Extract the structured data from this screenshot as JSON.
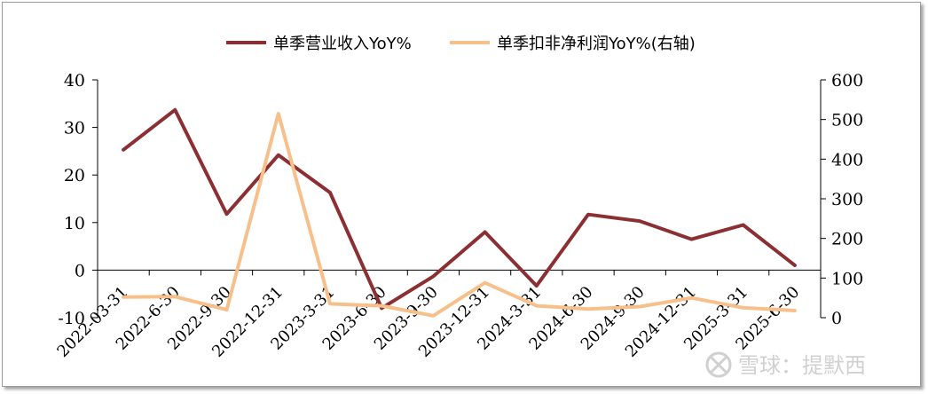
{
  "chart_data": {
    "type": "line",
    "categories": [
      "2022-03-31",
      "2022-6-30",
      "2022-9-30",
      "2022-12-31",
      "2023-3-31",
      "2023-6-30",
      "2023-9-30",
      "2023-12-31",
      "2024-3-31",
      "2024-6-30",
      "2024-9-30",
      "2024-12-31",
      "2025-3-31",
      "2025-6-30"
    ],
    "series": [
      {
        "name": "单季营业收入YoY%",
        "axis": "left",
        "color": "#8b2f33",
        "values": [
          25.3,
          33.7,
          11.8,
          24.2,
          16.3,
          -8.0,
          -1.3,
          8.0,
          -3.3,
          11.7,
          10.3,
          6.5,
          9.5,
          1.0
        ]
      },
      {
        "name": "单季扣非净利润YoY%(右轴)",
        "axis": "right",
        "color": "#f7c08a",
        "values": [
          52,
          53,
          20,
          515,
          35,
          30,
          5,
          88,
          30,
          22,
          28,
          50,
          25,
          18
        ]
      }
    ],
    "y_left": {
      "min": -10,
      "max": 40,
      "ticks": [
        -10,
        0,
        10,
        20,
        30,
        40
      ]
    },
    "y_right": {
      "min": 0,
      "max": 600,
      "ticks": [
        0,
        100,
        200,
        300,
        400,
        500,
        600
      ]
    },
    "legend_position": "top",
    "grid": false
  },
  "watermark": {
    "text": "雪球：提默西"
  }
}
